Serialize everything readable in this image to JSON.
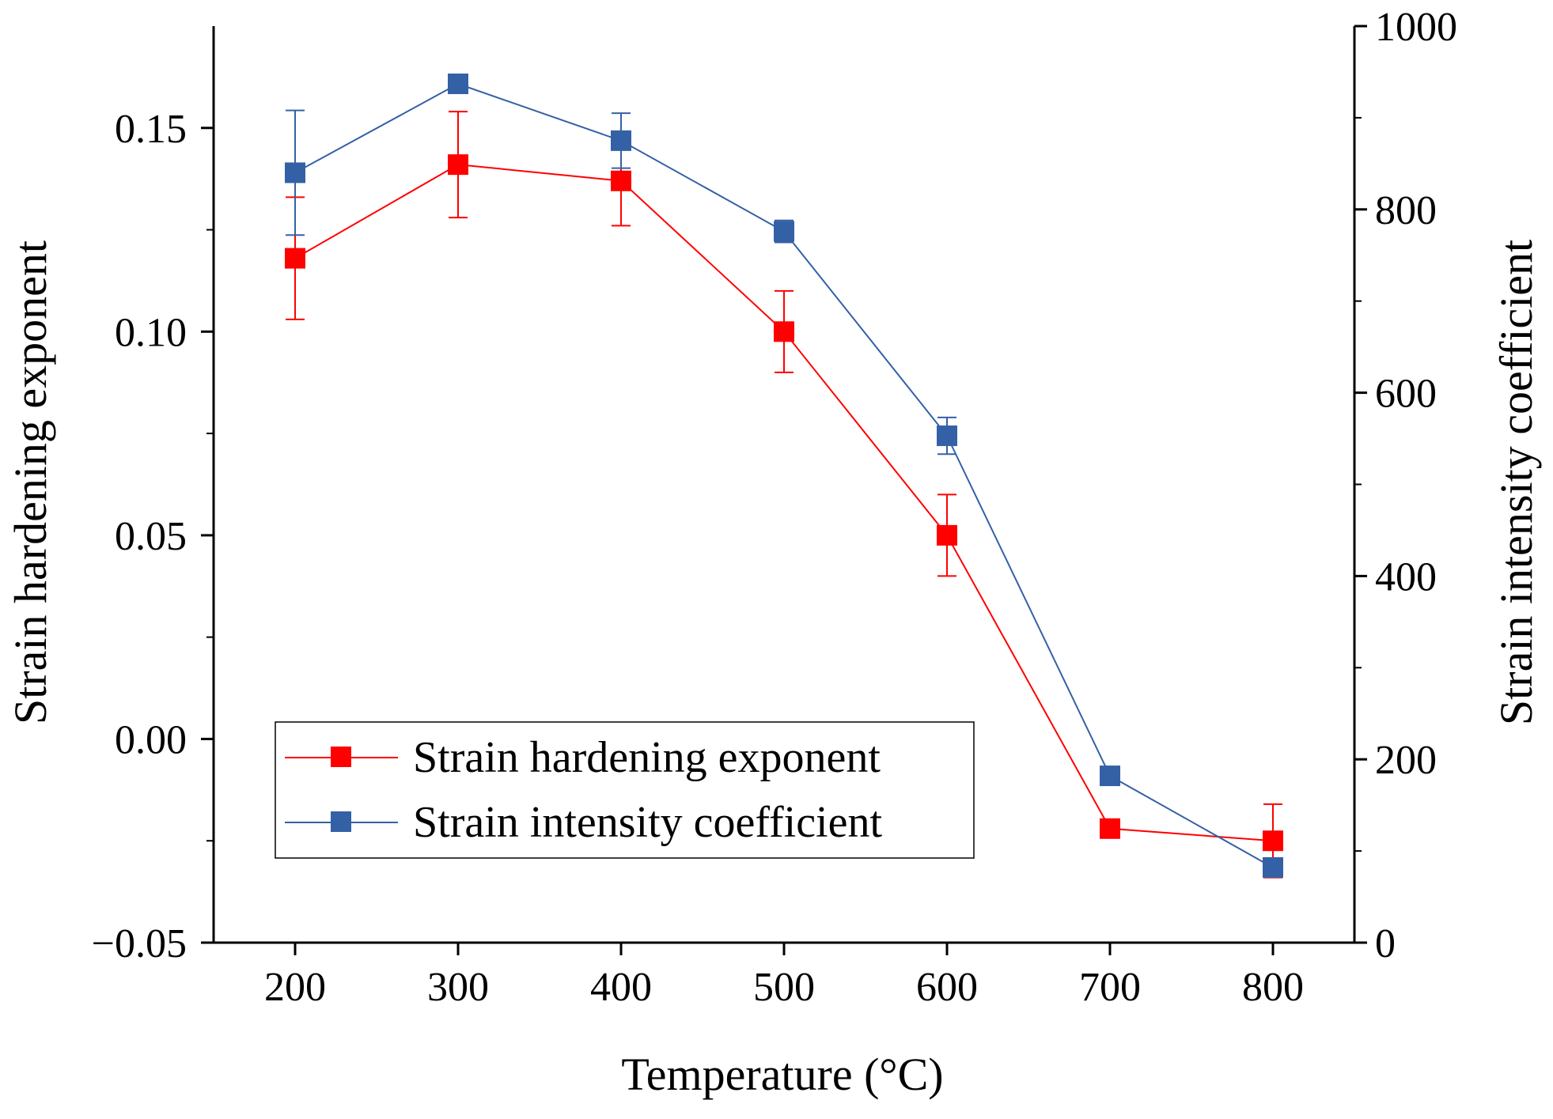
{
  "chart_data": {
    "type": "line",
    "xlabel": "Temperature (°C)",
    "ylabel_left": "Strain hardening exponent",
    "ylabel_right": "Strain intensity coefficient",
    "x": [
      200,
      300,
      400,
      500,
      600,
      700,
      800
    ],
    "xlim": [
      150,
      850
    ],
    "ylim_left": [
      -0.05,
      0.175
    ],
    "ylim_right": [
      0,
      1000
    ],
    "x_ticks": [
      200,
      300,
      400,
      500,
      600,
      700,
      800
    ],
    "x_tick_labels": [
      "200",
      "300",
      "400",
      "500",
      "600",
      "700",
      "800"
    ],
    "y_left_ticks": [
      -0.05,
      0.0,
      0.05,
      0.1,
      0.15
    ],
    "y_left_tick_labels": [
      "−0.05",
      "0.00",
      "0.05",
      "0.10",
      "0.15"
    ],
    "y_right_ticks": [
      0,
      200,
      400,
      600,
      800,
      1000
    ],
    "y_right_tick_labels": [
      "0",
      "200",
      "400",
      "600",
      "800",
      "1000"
    ],
    "grid": false,
    "legend_position": "bottom-left",
    "series": [
      {
        "name": "Strain hardening exponent",
        "axis": "left",
        "color": "#ff0000",
        "values": [
          0.118,
          0.141,
          0.137,
          0.1,
          0.05,
          -0.022,
          -0.025
        ],
        "error": [
          0.015,
          0.013,
          0.011,
          0.01,
          0.01,
          0.0,
          0.009
        ]
      },
      {
        "name": "Strain intensity coefficient",
        "axis": "right",
        "color": "#3461a6",
        "values": [
          840,
          937,
          875,
          776,
          553,
          182,
          82
        ],
        "error": [
          68,
          0,
          30,
          12,
          20,
          0,
          10
        ]
      }
    ]
  }
}
